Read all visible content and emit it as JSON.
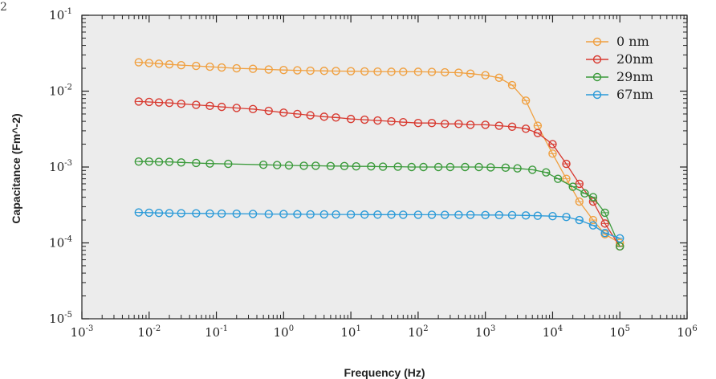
{
  "corner_fragment": "2",
  "chart_data": {
    "type": "line",
    "title": "",
    "xlabel": "Frequency (Hz)",
    "ylabel": "Capacitance (Fm^-2)",
    "xscale": "log",
    "yscale": "log",
    "xlim": [
      0.001,
      1000000
    ],
    "ylim": [
      1e-05,
      0.1
    ],
    "x_ticks": [
      {
        "value": 0.001,
        "base": "10",
        "exp": "-3"
      },
      {
        "value": 0.01,
        "base": "10",
        "exp": "-2"
      },
      {
        "value": 0.1,
        "base": "10",
        "exp": "-1"
      },
      {
        "value": 1,
        "base": "10",
        "exp": "0"
      },
      {
        "value": 10,
        "base": "10",
        "exp": "1"
      },
      {
        "value": 100,
        "base": "10",
        "exp": "2"
      },
      {
        "value": 1000,
        "base": "10",
        "exp": "3"
      },
      {
        "value": 10000,
        "base": "10",
        "exp": "4"
      },
      {
        "value": 100000,
        "base": "10",
        "exp": "5"
      },
      {
        "value": 1000000,
        "base": "10",
        "exp": "6"
      }
    ],
    "y_ticks": [
      {
        "value": 0.1,
        "base": "10",
        "exp": "-1"
      },
      {
        "value": 0.01,
        "base": "10",
        "exp": "-2"
      },
      {
        "value": 0.001,
        "base": "10",
        "exp": "-3"
      },
      {
        "value": 0.0001,
        "base": "10",
        "exp": "-4"
      },
      {
        "value": 1e-05,
        "base": "10",
        "exp": "-5"
      }
    ],
    "grid": false,
    "legend_position": "top-right",
    "marker": "open-circle",
    "series": [
      {
        "name": "0 nm",
        "color": "#f0a040",
        "points": [
          [
            0.007,
            0.024
          ],
          [
            0.01,
            0.0235
          ],
          [
            0.014,
            0.023
          ],
          [
            0.02,
            0.0225
          ],
          [
            0.03,
            0.022
          ],
          [
            0.05,
            0.0215
          ],
          [
            0.08,
            0.021
          ],
          [
            0.12,
            0.0205
          ],
          [
            0.2,
            0.02
          ],
          [
            0.35,
            0.0197
          ],
          [
            0.6,
            0.0193
          ],
          [
            1,
            0.019
          ],
          [
            1.6,
            0.0188
          ],
          [
            2.5,
            0.0186
          ],
          [
            4,
            0.0185
          ],
          [
            6,
            0.0184
          ],
          [
            10,
            0.0183
          ],
          [
            16,
            0.0182
          ],
          [
            25,
            0.0181
          ],
          [
            40,
            0.018
          ],
          [
            60,
            0.018
          ],
          [
            100,
            0.018
          ],
          [
            160,
            0.0179
          ],
          [
            250,
            0.0177
          ],
          [
            400,
            0.0175
          ],
          [
            600,
            0.017
          ],
          [
            1000,
            0.0162
          ],
          [
            1600,
            0.015
          ],
          [
            2500,
            0.012
          ],
          [
            4000,
            0.0075
          ],
          [
            6000,
            0.0035
          ],
          [
            10000,
            0.0015
          ],
          [
            16000,
            0.0007
          ],
          [
            25000,
            0.00035
          ],
          [
            40000,
            0.0002
          ],
          [
            60000,
            0.00013
          ],
          [
            100000,
            0.0001
          ]
        ]
      },
      {
        "name": "20nm",
        "color": "#d83a30",
        "points": [
          [
            0.007,
            0.0073
          ],
          [
            0.01,
            0.0072
          ],
          [
            0.014,
            0.0071
          ],
          [
            0.02,
            0.007
          ],
          [
            0.03,
            0.0068
          ],
          [
            0.05,
            0.0066
          ],
          [
            0.08,
            0.0064
          ],
          [
            0.12,
            0.0062
          ],
          [
            0.2,
            0.006
          ],
          [
            0.35,
            0.0058
          ],
          [
            0.6,
            0.0055
          ],
          [
            1,
            0.0052
          ],
          [
            1.6,
            0.005
          ],
          [
            2.5,
            0.0048
          ],
          [
            4,
            0.0046
          ],
          [
            6,
            0.0045
          ],
          [
            10,
            0.0043
          ],
          [
            16,
            0.0042
          ],
          [
            25,
            0.0041
          ],
          [
            40,
            0.004
          ],
          [
            60,
            0.0039
          ],
          [
            100,
            0.0038
          ],
          [
            160,
            0.0038
          ],
          [
            250,
            0.0037
          ],
          [
            400,
            0.0037
          ],
          [
            600,
            0.0036
          ],
          [
            1000,
            0.0036
          ],
          [
            1600,
            0.0035
          ],
          [
            2500,
            0.0034
          ],
          [
            4000,
            0.0032
          ],
          [
            6000,
            0.0028
          ],
          [
            10000,
            0.002
          ],
          [
            16000,
            0.0011
          ],
          [
            25000,
            0.0006
          ],
          [
            40000,
            0.00035
          ],
          [
            60000,
            0.00018
          ],
          [
            100000,
            9e-05
          ]
        ]
      },
      {
        "name": "29nm",
        "color": "#3a9a3a",
        "points": [
          [
            0.007,
            0.00118
          ],
          [
            0.01,
            0.00118
          ],
          [
            0.014,
            0.00117
          ],
          [
            0.02,
            0.00117
          ],
          [
            0.03,
            0.00115
          ],
          [
            0.05,
            0.00113
          ],
          [
            0.08,
            0.00111
          ],
          [
            0.15,
            0.0011
          ],
          [
            0.5,
            0.00107
          ],
          [
            0.8,
            0.00106
          ],
          [
            1.2,
            0.00105
          ],
          [
            2,
            0.00104
          ],
          [
            3,
            0.00104
          ],
          [
            5,
            0.00103
          ],
          [
            8,
            0.00103
          ],
          [
            12,
            0.00102
          ],
          [
            20,
            0.00102
          ],
          [
            30,
            0.00101
          ],
          [
            50,
            0.00101
          ],
          [
            80,
            0.001
          ],
          [
            120,
            0.001
          ],
          [
            200,
            0.001
          ],
          [
            300,
            0.001
          ],
          [
            500,
            0.001
          ],
          [
            800,
            0.001
          ],
          [
            1200,
            0.00099
          ],
          [
            2000,
            0.00098
          ],
          [
            3000,
            0.00096
          ],
          [
            5000,
            0.00092
          ],
          [
            8000,
            0.00085
          ],
          [
            12000,
            0.0007
          ],
          [
            20000,
            0.00055
          ],
          [
            30000,
            0.00045
          ],
          [
            40000,
            0.0004
          ],
          [
            60000,
            0.00025
          ],
          [
            100000,
            9e-05
          ]
        ]
      },
      {
        "name": "67nm",
        "color": "#2a9ad8",
        "points": [
          [
            0.007,
            0.000252
          ],
          [
            0.01,
            0.00025
          ],
          [
            0.014,
            0.000248
          ],
          [
            0.02,
            0.000247
          ],
          [
            0.03,
            0.000246
          ],
          [
            0.05,
            0.000245
          ],
          [
            0.08,
            0.000244
          ],
          [
            0.12,
            0.000243
          ],
          [
            0.2,
            0.000242
          ],
          [
            0.35,
            0.000241
          ],
          [
            0.6,
            0.00024
          ],
          [
            1,
            0.00024
          ],
          [
            1.6,
            0.000239
          ],
          [
            2.5,
            0.000238
          ],
          [
            4,
            0.000238
          ],
          [
            6,
            0.000237
          ],
          [
            10,
            0.000237
          ],
          [
            16,
            0.000236
          ],
          [
            25,
            0.000236
          ],
          [
            40,
            0.000236
          ],
          [
            60,
            0.000235
          ],
          [
            100,
            0.000235
          ],
          [
            160,
            0.000235
          ],
          [
            250,
            0.000234
          ],
          [
            400,
            0.000234
          ],
          [
            600,
            0.000234
          ],
          [
            1000,
            0.000233
          ],
          [
            1600,
            0.000233
          ],
          [
            2500,
            0.000232
          ],
          [
            4000,
            0.00023
          ],
          [
            6000,
            0.000228
          ],
          [
            10000,
            0.000225
          ],
          [
            16000,
            0.00022
          ],
          [
            25000,
            0.0002
          ],
          [
            40000,
            0.00017
          ],
          [
            60000,
            0.000135
          ],
          [
            100000,
            0.000115
          ]
        ]
      }
    ]
  }
}
